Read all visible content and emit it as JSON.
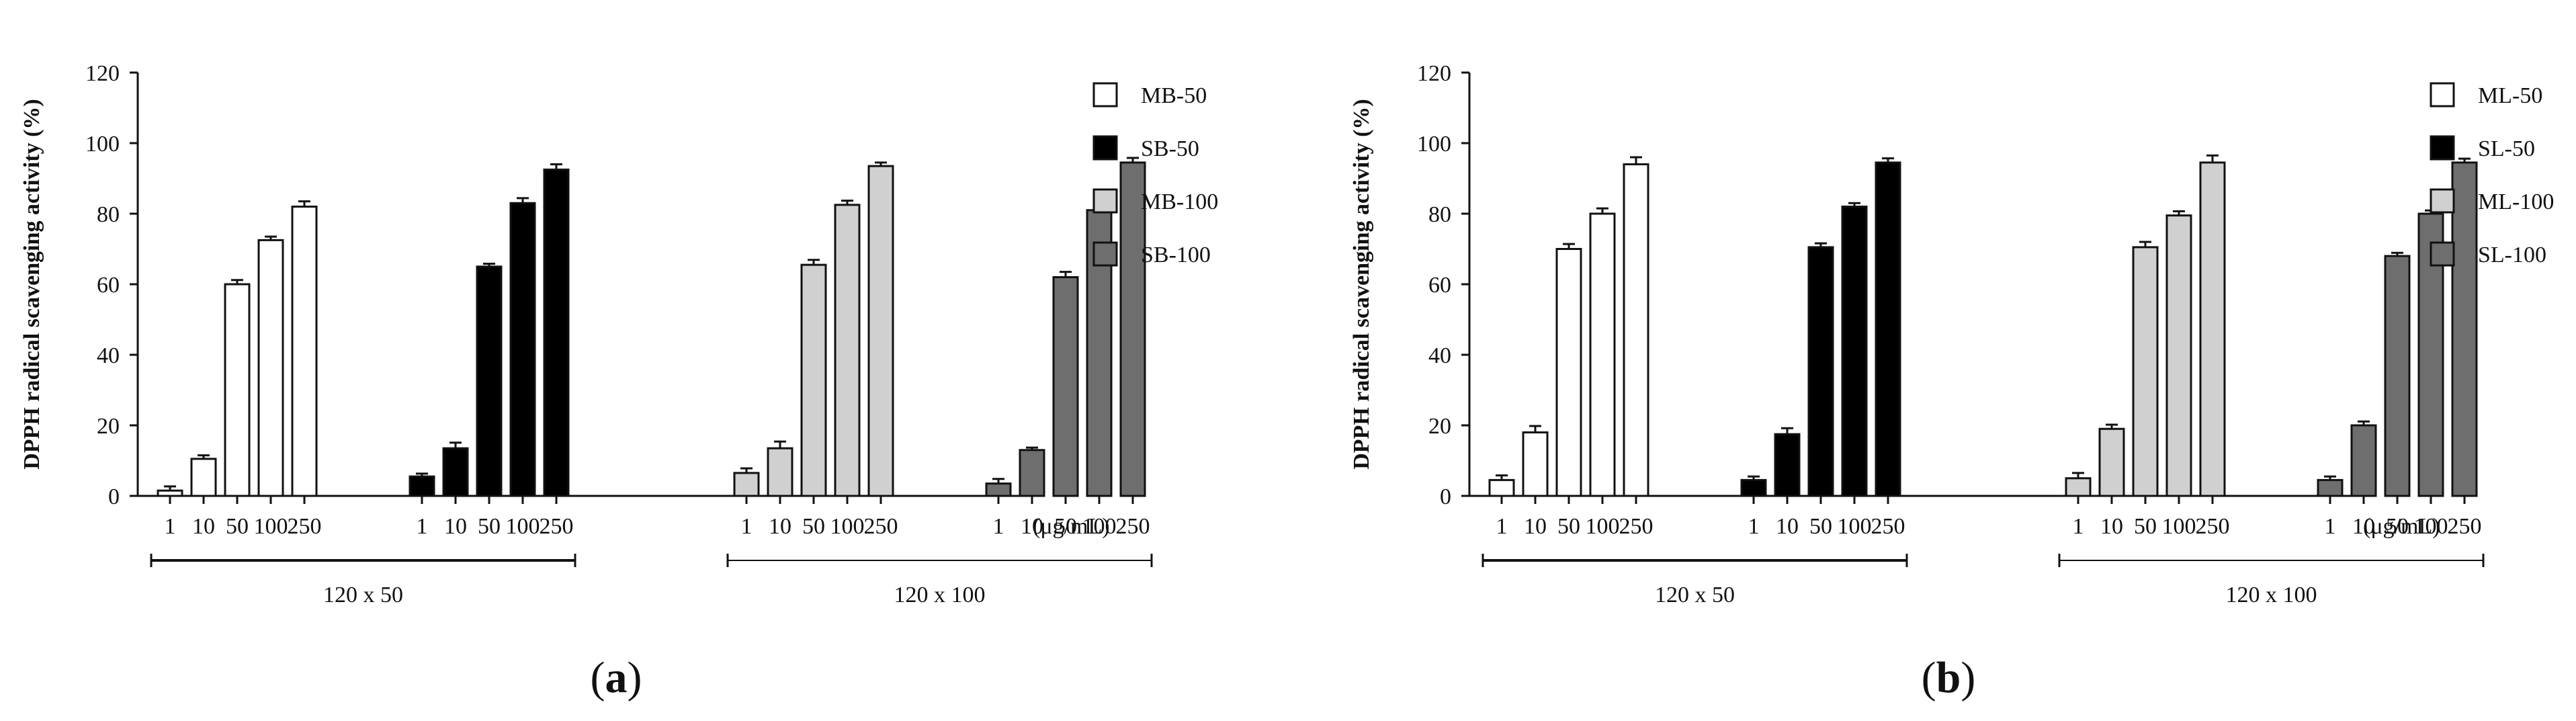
{
  "chart_data": [
    {
      "type": "bar",
      "panel_label": "a",
      "panel_label_prefix": "(",
      "panel_label_suffix": ")",
      "ylabel": "DPPH radical scavenging activity (%)",
      "ylim": [
        0,
        120
      ],
      "yticks": [
        0,
        20,
        40,
        60,
        80,
        100,
        120
      ],
      "concentrations": [
        "1",
        "10",
        "50",
        "100",
        "250"
      ],
      "unit_label": "(μg/mL)",
      "groups": [
        {
          "label": "120 x 50",
          "series": [
            "MB-50",
            "SB-50"
          ]
        },
        {
          "label": "120 x 100",
          "series": [
            "MB-100",
            "SB-100"
          ]
        }
      ],
      "legend_position": "top-right",
      "series": [
        {
          "name": "MB-50",
          "fill": "#ffffff",
          "values": [
            1.5,
            10.5,
            60,
            72.5,
            82
          ],
          "errors": [
            1.2,
            1.0,
            1.2,
            1.0,
            1.5
          ]
        },
        {
          "name": "SB-50",
          "fill": "#000000",
          "values": [
            5.5,
            13.5,
            65,
            83,
            92.5
          ],
          "errors": [
            0.8,
            1.6,
            0.8,
            1.4,
            1.5
          ]
        },
        {
          "name": "MB-100",
          "fill": "#d0d0d0",
          "values": [
            6.5,
            13.5,
            65.5,
            82.5,
            93.5
          ],
          "errors": [
            1.3,
            1.9,
            1.4,
            1.2,
            1.0
          ]
        },
        {
          "name": "SB-100",
          "fill": "#6e6e6e",
          "values": [
            3.5,
            13,
            62,
            81,
            94.5
          ],
          "errors": [
            1.3,
            0.7,
            1.5,
            0.8,
            1.3
          ]
        }
      ]
    },
    {
      "type": "bar",
      "panel_label": "b",
      "panel_label_prefix": "(",
      "panel_label_suffix": ")",
      "ylabel": "DPPH radical scavenging activity (%)",
      "ylim": [
        0,
        120
      ],
      "yticks": [
        0,
        20,
        40,
        60,
        80,
        100,
        120
      ],
      "concentrations": [
        "1",
        "10",
        "50",
        "100",
        "250"
      ],
      "unit_label": "(μg/mL)",
      "groups": [
        {
          "label": "120 x 50",
          "series": [
            "ML-50",
            "SL-50"
          ]
        },
        {
          "label": "120 x 100",
          "series": [
            "ML-100",
            "SL-100"
          ]
        }
      ],
      "legend_position": "top-right",
      "series": [
        {
          "name": "ML-50",
          "fill": "#ffffff",
          "values": [
            4.5,
            18,
            70,
            80,
            94
          ],
          "errors": [
            1.3,
            1.8,
            1.4,
            1.5,
            2.0
          ]
        },
        {
          "name": "SL-50",
          "fill": "#000000",
          "values": [
            4.5,
            17.5,
            70.5,
            82,
            94.5
          ],
          "errors": [
            1.0,
            1.7,
            1.1,
            1.0,
            1.2
          ]
        },
        {
          "name": "ML-100",
          "fill": "#d0d0d0",
          "values": [
            5,
            19,
            70.5,
            79.5,
            94.5
          ],
          "errors": [
            1.5,
            1.2,
            1.5,
            1.2,
            2.0
          ]
        },
        {
          "name": "SL-100",
          "fill": "#6e6e6e",
          "values": [
            4.5,
            20,
            68,
            80,
            94.5
          ],
          "errors": [
            1.0,
            1.1,
            0.9,
            0.9,
            1.1
          ]
        }
      ]
    }
  ]
}
